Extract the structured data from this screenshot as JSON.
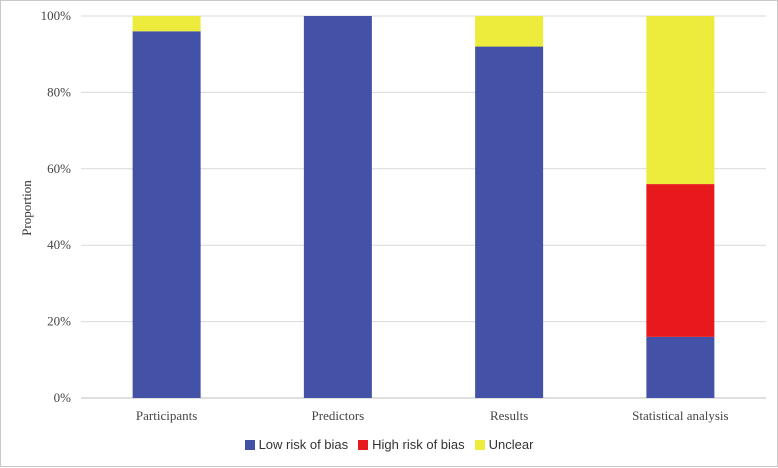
{
  "chart_data": {
    "type": "bar",
    "stacked": true,
    "title": "",
    "xlabel": "",
    "ylabel": "Proportion",
    "ylim": [
      0,
      100
    ],
    "yticks": [
      "0%",
      "20%",
      "40%",
      "60%",
      "80%",
      "100%"
    ],
    "categories": [
      "Participants",
      "Predictors",
      "Results",
      "Statistical analysis"
    ],
    "series": [
      {
        "name": "Low risk of bias",
        "color": "#4351A6",
        "values": [
          96,
          100,
          92,
          16
        ]
      },
      {
        "name": "High risk of bias",
        "color": "#E8191C",
        "values": [
          0,
          0,
          0,
          40
        ]
      },
      {
        "name": "Unclear",
        "color": "#EDEB3B",
        "values": [
          4,
          0,
          8,
          44
        ]
      }
    ],
    "grid": true,
    "legend_position": "bottom"
  }
}
